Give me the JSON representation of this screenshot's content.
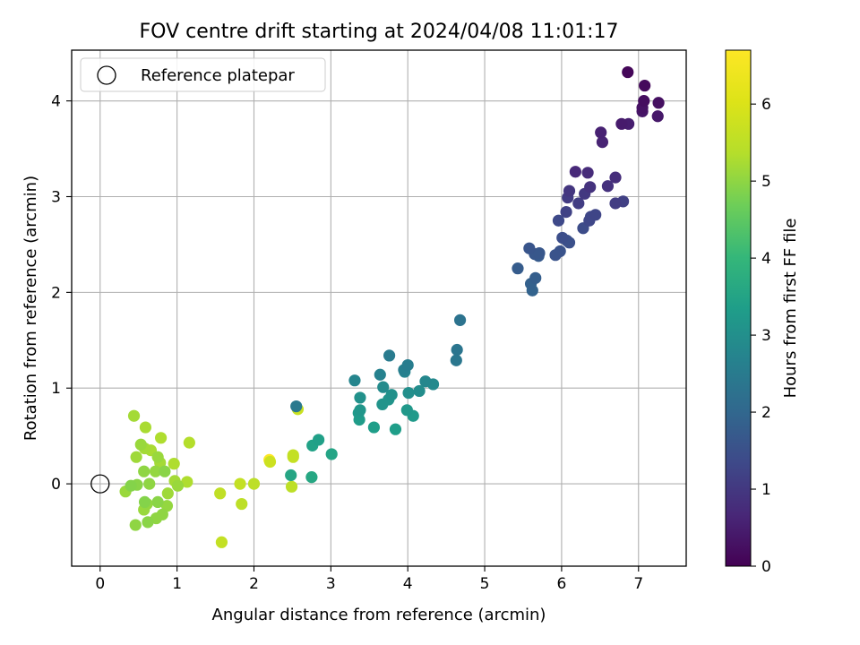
{
  "chart_data": {
    "type": "scatter",
    "title": "FOV centre drift starting at 2024/04/08 11:01:17",
    "xlabel": "Angular distance from reference (arcmin)",
    "ylabel": "Rotation from reference (arcmin)",
    "xlim": [
      -0.37,
      7.62
    ],
    "ylim": [
      -0.86,
      4.53
    ],
    "xticks": [
      0,
      1,
      2,
      3,
      4,
      5,
      6,
      7
    ],
    "yticks": [
      0,
      1,
      2,
      3,
      4
    ],
    "grid": true,
    "legend": {
      "placement": "top-left",
      "entries": [
        "Reference platepar"
      ]
    },
    "reference_point": {
      "x": 0,
      "y": 0,
      "label": "Reference platepar"
    },
    "colorbar": {
      "label": "Hours from first FF file",
      "range": [
        0,
        6.7
      ],
      "ticks": [
        0,
        1,
        2,
        3,
        4,
        5,
        6
      ],
      "colormap": "viridis"
    },
    "series": [
      {
        "points": [
          [
            6.86,
            4.3,
            0.1
          ],
          [
            7.08,
            4.16,
            0.15
          ],
          [
            7.07,
            4.0,
            0.2
          ],
          [
            7.26,
            3.98,
            0.25
          ],
          [
            7.05,
            3.93,
            0.3
          ],
          [
            7.05,
            3.89,
            0.35
          ],
          [
            7.25,
            3.84,
            0.4
          ],
          [
            6.78,
            3.76,
            0.45
          ],
          [
            6.87,
            3.76,
            0.5
          ],
          [
            6.51,
            3.67,
            0.55
          ],
          [
            6.53,
            3.57,
            0.6
          ],
          [
            6.18,
            3.26,
            0.7
          ],
          [
            6.34,
            3.25,
            0.75
          ],
          [
            6.7,
            3.2,
            0.8
          ],
          [
            6.6,
            3.11,
            0.85
          ],
          [
            6.37,
            3.1,
            0.9
          ],
          [
            6.1,
            3.06,
            0.95
          ],
          [
            6.3,
            3.03,
            1.0
          ],
          [
            6.08,
            2.99,
            1.05
          ],
          [
            6.22,
            2.93,
            1.1
          ],
          [
            6.7,
            2.93,
            1.1
          ],
          [
            6.8,
            2.95,
            1.15
          ],
          [
            6.06,
            2.84,
            1.2
          ],
          [
            6.44,
            2.81,
            1.25
          ],
          [
            6.38,
            2.79,
            1.3
          ],
          [
            6.36,
            2.75,
            1.3
          ],
          [
            5.96,
            2.75,
            1.35
          ],
          [
            6.28,
            2.67,
            1.4
          ],
          [
            6.01,
            2.57,
            1.45
          ],
          [
            6.07,
            2.54,
            1.5
          ],
          [
            6.1,
            2.52,
            1.5
          ],
          [
            5.98,
            2.43,
            1.55
          ],
          [
            5.92,
            2.39,
            1.55
          ],
          [
            5.58,
            2.46,
            1.6
          ],
          [
            5.65,
            2.4,
            1.65
          ],
          [
            5.71,
            2.41,
            1.65
          ],
          [
            5.7,
            2.38,
            1.7
          ],
          [
            5.43,
            2.25,
            1.75
          ],
          [
            5.66,
            2.15,
            1.8
          ],
          [
            5.6,
            2.09,
            1.85
          ],
          [
            5.62,
            2.02,
            1.9
          ],
          [
            4.68,
            1.71,
            2.3
          ],
          [
            4.64,
            1.4,
            2.35
          ],
          [
            4.63,
            1.29,
            2.4
          ],
          [
            3.76,
            1.34,
            2.5
          ],
          [
            4.0,
            1.24,
            2.55
          ],
          [
            3.95,
            1.19,
            2.6
          ],
          [
            3.64,
            1.14,
            2.65
          ],
          [
            3.96,
            1.17,
            2.7
          ],
          [
            3.31,
            1.08,
            2.75
          ],
          [
            4.23,
            1.07,
            2.8
          ],
          [
            4.33,
            1.04,
            2.85
          ],
          [
            3.68,
            1.01,
            2.9
          ],
          [
            4.15,
            0.97,
            2.95
          ],
          [
            4.01,
            0.95,
            3.0
          ],
          [
            3.79,
            0.93,
            3.05
          ],
          [
            3.38,
            0.9,
            3.05
          ],
          [
            3.75,
            0.88,
            3.1
          ],
          [
            3.67,
            0.83,
            3.1
          ],
          [
            2.55,
            0.81,
            2.45
          ],
          [
            3.38,
            0.77,
            3.15
          ],
          [
            3.99,
            0.77,
            3.2
          ],
          [
            4.07,
            0.71,
            3.25
          ],
          [
            3.36,
            0.74,
            3.25
          ],
          [
            3.37,
            0.67,
            3.3
          ],
          [
            3.56,
            0.59,
            3.35
          ],
          [
            3.84,
            0.57,
            3.35
          ],
          [
            2.84,
            0.46,
            3.4
          ],
          [
            2.76,
            0.4,
            3.45
          ],
          [
            3.01,
            0.31,
            3.5
          ],
          [
            2.48,
            0.09,
            3.55
          ],
          [
            2.75,
            0.07,
            3.6
          ],
          [
            2.57,
            0.78,
            5.7
          ],
          [
            2.51,
            0.3,
            5.6
          ],
          [
            2.51,
            0.28,
            5.65
          ],
          [
            2.21,
            0.23,
            5.75
          ],
          [
            2.2,
            0.25,
            6.7
          ],
          [
            2.49,
            -0.03,
            5.5
          ],
          [
            1.82,
            0.0,
            5.6
          ],
          [
            2.0,
            0.0,
            5.5
          ],
          [
            1.56,
            -0.1,
            5.55
          ],
          [
            1.84,
            -0.21,
            5.5
          ],
          [
            1.58,
            -0.61,
            5.6
          ],
          [
            0.44,
            0.71,
            5.2
          ],
          [
            0.59,
            0.59,
            5.25
          ],
          [
            0.79,
            0.48,
            5.3
          ],
          [
            1.16,
            0.43,
            5.35
          ],
          [
            0.53,
            0.41,
            5.1
          ],
          [
            0.58,
            0.37,
            5.2
          ],
          [
            0.66,
            0.35,
            5.25
          ],
          [
            0.47,
            0.28,
            5.15
          ],
          [
            0.75,
            0.28,
            5.1
          ],
          [
            0.78,
            0.22,
            5.2
          ],
          [
            0.96,
            0.21,
            5.3
          ],
          [
            0.57,
            0.13,
            5.0
          ],
          [
            0.72,
            0.13,
            5.05
          ],
          [
            0.84,
            0.13,
            4.95
          ],
          [
            0.97,
            0.03,
            5.2
          ],
          [
            1.13,
            0.02,
            5.3
          ],
          [
            0.4,
            -0.02,
            4.9
          ],
          [
            0.48,
            -0.01,
            4.95
          ],
          [
            0.64,
            0.0,
            5.0
          ],
          [
            1.01,
            -0.02,
            5.1
          ],
          [
            0.33,
            -0.08,
            5.1
          ],
          [
            0.88,
            -0.1,
            5.15
          ],
          [
            0.58,
            -0.19,
            4.9
          ],
          [
            0.61,
            -0.21,
            5.05
          ],
          [
            0.75,
            -0.19,
            4.95
          ],
          [
            0.87,
            -0.23,
            5.05
          ],
          [
            0.57,
            -0.27,
            5.1
          ],
          [
            0.81,
            -0.32,
            5.0
          ],
          [
            0.73,
            -0.36,
            5.0
          ],
          [
            0.62,
            -0.4,
            4.95
          ],
          [
            0.46,
            -0.43,
            5.0
          ]
        ]
      }
    ]
  }
}
